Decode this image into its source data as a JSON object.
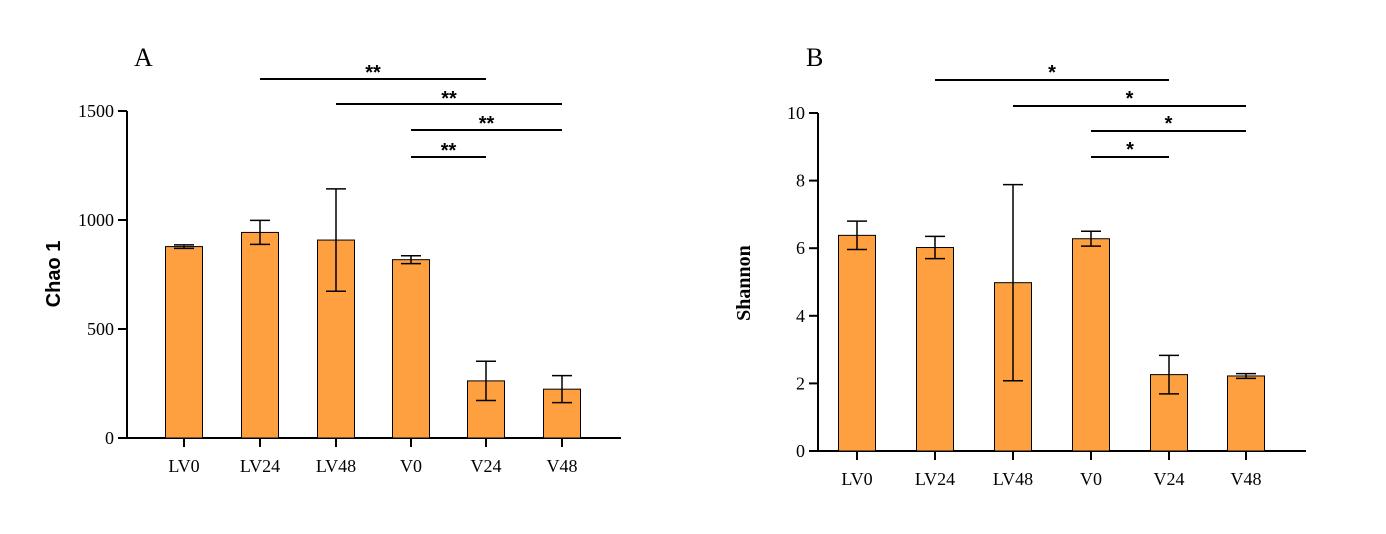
{
  "chart_data": [
    {
      "type": "bar",
      "panel": "A",
      "categories": [
        "LV0",
        "LV24",
        "LV48",
        "V0",
        "V24",
        "V48"
      ],
      "values": [
        878,
        943,
        908,
        818,
        262,
        224
      ],
      "error": [
        8,
        55,
        235,
        18,
        90,
        62
      ],
      "ylabel": "Chao 1",
      "ylim": [
        0,
        1500
      ],
      "yticks": [
        "0",
        "500",
        "1000",
        "1500"
      ],
      "bar_color": "#FFA040",
      "significance": [
        {
          "from": 1,
          "to": 4,
          "label": "**"
        },
        {
          "from": 2,
          "to": 5,
          "label": "**"
        },
        {
          "from": 3,
          "to": 5,
          "label": "**"
        },
        {
          "from": 3,
          "to": 4,
          "label": "**"
        }
      ]
    },
    {
      "type": "bar",
      "panel": "B",
      "categories": [
        "LV0",
        "LV24",
        "LV48",
        "V0",
        "V24",
        "V48"
      ],
      "values": [
        6.38,
        6.02,
        4.98,
        6.28,
        2.26,
        2.22
      ],
      "error": [
        0.42,
        0.33,
        2.9,
        0.22,
        0.57,
        0.07
      ],
      "ylabel": "Shannon",
      "ylim": [
        0,
        10
      ],
      "yticks": [
        "0",
        "2",
        "4",
        "6",
        "8",
        "10"
      ],
      "bar_color": "#FFA040",
      "significance": [
        {
          "from": 1,
          "to": 4,
          "label": "*"
        },
        {
          "from": 2,
          "to": 5,
          "label": "*"
        },
        {
          "from": 3,
          "to": 5,
          "label": "*"
        },
        {
          "from": 3,
          "to": 4,
          "label": "*"
        }
      ]
    }
  ]
}
